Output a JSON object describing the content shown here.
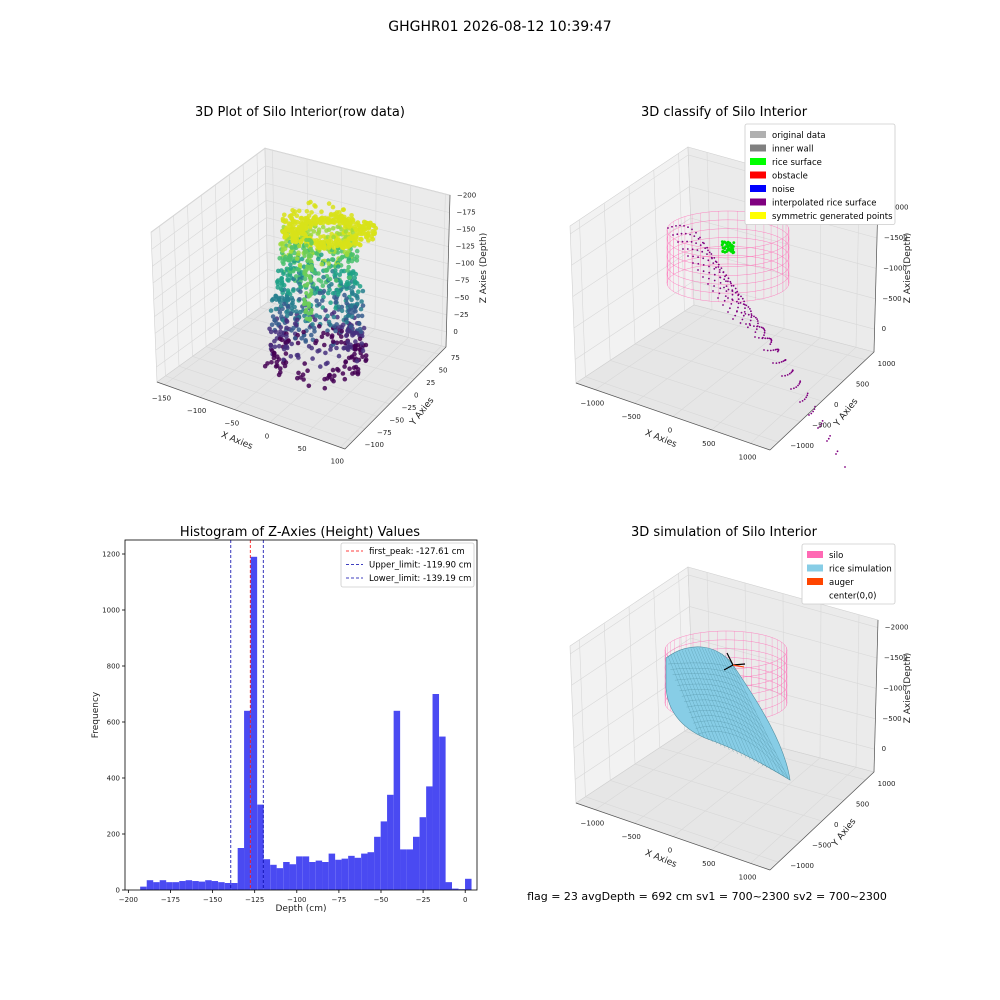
{
  "suptitle": "GHGHR01 2026-08-12 10:39:47",
  "footer": "flag = 23   avgDepth = 692 cm   sv1 = 700~2300   sv2 = 700~2300",
  "colors": {
    "histogram_bar": "#4a4af2",
    "first_peak_line": "#ff0000",
    "limit_line": "#0000aa",
    "silo": "#ff69b4",
    "rice": "#87cde6",
    "auger": "#ff4500"
  },
  "chart_data": [
    {
      "type": "scatter",
      "title": "3D Plot of Silo Interior(row data)",
      "xlabel": "X Axies",
      "ylabel": "Y Axies",
      "zlabel": "Z Axies (Depth)",
      "colormap": "viridis",
      "x_ticks": [
        "−150",
        "−100",
        "−50",
        "0",
        "50",
        "100"
      ],
      "y_ticks": [
        "75",
        "50",
        "25",
        "0",
        "−25",
        "−50",
        "−75",
        "−100"
      ],
      "z_ticks": [
        "0",
        "−25",
        "−50",
        "−75",
        "−100",
        "−125",
        "−150",
        "−175",
        "−200"
      ],
      "xlim": [
        -160,
        100
      ],
      "ylim": [
        -100,
        85
      ],
      "zlim": [
        -200,
        10
      ]
    },
    {
      "type": "scatter",
      "title": "3D classify of Silo Interior",
      "xlabel": "X Axies",
      "ylabel": "Y Axies",
      "zlabel": "Z Axies (Depth)",
      "x_ticks": [
        "−1000",
        "−500",
        "0",
        "500",
        "1000"
      ],
      "y_ticks": [
        "1000",
        "500",
        "0",
        "−500",
        "−1000"
      ],
      "z_ticks": [
        "0",
        "−500",
        "−1000",
        "−1500",
        "−2000"
      ],
      "legend": [
        {
          "label": "original data",
          "color": "#b0b0b0"
        },
        {
          "label": "inner wall",
          "color": "#808080"
        },
        {
          "label": "rice surface",
          "color": "#00ff00"
        },
        {
          "label": "obstacle",
          "color": "#ff0000"
        },
        {
          "label": "noise",
          "color": "#0000ff"
        },
        {
          "label": "interpolated rice surface",
          "color": "#800080"
        },
        {
          "label": "symmetric generated points",
          "color": "#ffff00"
        }
      ]
    },
    {
      "type": "bar",
      "title": "Histogram of Z-Axies (Height) Values",
      "xlabel": "Depth (cm)",
      "ylabel": "Frequency",
      "xlim": [
        -202,
        7
      ],
      "ylim": [
        0,
        1250
      ],
      "x_ticks": [
        -200,
        -175,
        -150,
        -125,
        -100,
        -75,
        -50,
        -25,
        0
      ],
      "y_ticks": [
        0,
        200,
        400,
        600,
        800,
        1000,
        1200
      ],
      "bin_width": 3.86,
      "bins": [
        {
          "x": -193.0,
          "count": 12
        },
        {
          "x": -189.1,
          "count": 35
        },
        {
          "x": -185.3,
          "count": 28
        },
        {
          "x": -181.4,
          "count": 35
        },
        {
          "x": -177.6,
          "count": 28
        },
        {
          "x": -173.7,
          "count": 28
        },
        {
          "x": -169.8,
          "count": 32
        },
        {
          "x": -166.0,
          "count": 35
        },
        {
          "x": -162.1,
          "count": 32
        },
        {
          "x": -158.3,
          "count": 30
        },
        {
          "x": -154.4,
          "count": 35
        },
        {
          "x": -150.6,
          "count": 32
        },
        {
          "x": -146.7,
          "count": 28
        },
        {
          "x": -142.8,
          "count": 25
        },
        {
          "x": -139.0,
          "count": 25
        },
        {
          "x": -135.1,
          "count": 150
        },
        {
          "x": -131.3,
          "count": 640
        },
        {
          "x": -127.4,
          "count": 1190
        },
        {
          "x": -123.5,
          "count": 305
        },
        {
          "x": -119.7,
          "count": 110
        },
        {
          "x": -115.8,
          "count": 90
        },
        {
          "x": -112.0,
          "count": 78
        },
        {
          "x": -108.1,
          "count": 100
        },
        {
          "x": -104.3,
          "count": 92
        },
        {
          "x": -100.4,
          "count": 120
        },
        {
          "x": -96.5,
          "count": 120
        },
        {
          "x": -92.7,
          "count": 100
        },
        {
          "x": -88.8,
          "count": 105
        },
        {
          "x": -85.0,
          "count": 100
        },
        {
          "x": -81.1,
          "count": 130
        },
        {
          "x": -77.2,
          "count": 108
        },
        {
          "x": -73.4,
          "count": 112
        },
        {
          "x": -69.5,
          "count": 122
        },
        {
          "x": -65.7,
          "count": 115
        },
        {
          "x": -61.8,
          "count": 130
        },
        {
          "x": -58.0,
          "count": 135
        },
        {
          "x": -54.1,
          "count": 190
        },
        {
          "x": -50.2,
          "count": 245
        },
        {
          "x": -46.4,
          "count": 340
        },
        {
          "x": -42.5,
          "count": 640
        },
        {
          "x": -38.7,
          "count": 145
        },
        {
          "x": -34.8,
          "count": 145
        },
        {
          "x": -31.0,
          "count": 190
        },
        {
          "x": -27.1,
          "count": 260
        },
        {
          "x": -23.2,
          "count": 370
        },
        {
          "x": -19.4,
          "count": 700
        },
        {
          "x": -15.5,
          "count": 548
        },
        {
          "x": -11.7,
          "count": 28
        },
        {
          "x": -7.8,
          "count": 5
        },
        {
          "x": -3.9,
          "count": 3
        },
        {
          "x": -0.1,
          "count": 40
        }
      ],
      "vlines": [
        {
          "label": "first_peak: -127.61 cm",
          "x": -127.61,
          "color": "#ff0000"
        },
        {
          "label": "Upper_limit: -119.90 cm",
          "x": -119.9,
          "color": "#0000aa"
        },
        {
          "label": "Lower_limit: -139.19 cm",
          "x": -139.19,
          "color": "#0000aa"
        }
      ]
    },
    {
      "type": "surface",
      "title": "3D simulation of Silo Interior",
      "xlabel": "X Axies",
      "ylabel": "Y Axies",
      "zlabel": "Z Axies (Depth)",
      "x_ticks": [
        "−1000",
        "−500",
        "0",
        "500",
        "1000"
      ],
      "y_ticks": [
        "1000",
        "500",
        "0",
        "−500",
        "−1000"
      ],
      "z_ticks": [
        "0",
        "−500",
        "−1000",
        "−1500",
        "−2000"
      ],
      "legend": [
        {
          "label": "silo",
          "color": "#ff69b4"
        },
        {
          "label": "rice simulation",
          "color": "#87cde6"
        },
        {
          "label": "auger",
          "color": "#ff4500"
        },
        {
          "label": "center(0,0)",
          "color": ""
        }
      ]
    }
  ]
}
